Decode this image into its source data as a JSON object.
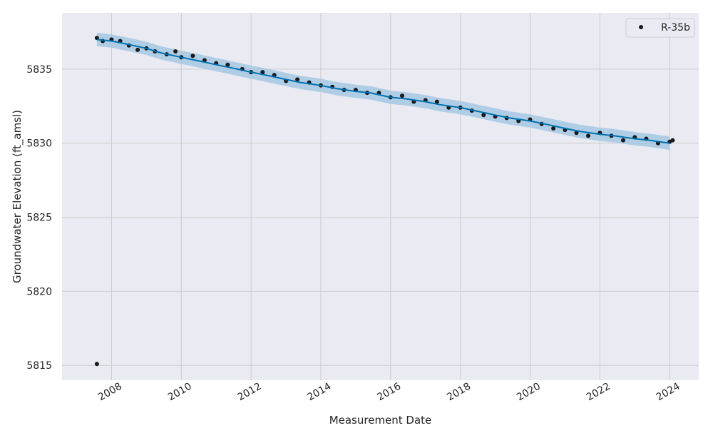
{
  "chart_data": {
    "type": "scatter",
    "title": "",
    "xlabel": "Measurement Date",
    "ylabel": "Groundwater Elevation (ft_amsl)",
    "xlim": [
      "2006-08-01",
      "2024-11-01"
    ],
    "ylim": [
      5814,
      5838.8
    ],
    "x_ticks": [
      "2008",
      "2010",
      "2012",
      "2014",
      "2016",
      "2018",
      "2020",
      "2022",
      "2024"
    ],
    "y_ticks": [
      5815,
      5820,
      5825,
      5830,
      5835
    ],
    "grid": true,
    "legend": {
      "placement": "top-right",
      "entries": [
        "R-35b"
      ]
    },
    "colors": {
      "plot_background": "#eaeaf2",
      "grid": "#cccccc",
      "observations": "#1a1a1a",
      "forecast_line": "#0072b2",
      "uncertainty_band": "#a6c8e4"
    },
    "series": [
      {
        "name": "R-35b",
        "kind": "observations",
        "points": [
          [
            "2007-08-01",
            5815.1
          ],
          [
            "2007-08-01",
            5837.1
          ],
          [
            "2007-10-01",
            5836.9
          ],
          [
            "2008-01-01",
            5837.0
          ],
          [
            "2008-04-01",
            5836.9
          ],
          [
            "2008-07-01",
            5836.6
          ],
          [
            "2008-10-01",
            5836.3
          ],
          [
            "2009-01-01",
            5836.4
          ],
          [
            "2009-04-01",
            5836.2
          ],
          [
            "2009-08-01",
            5836.0
          ],
          [
            "2009-11-01",
            5836.2
          ],
          [
            "2010-01-01",
            5835.8
          ],
          [
            "2010-05-01",
            5835.9
          ],
          [
            "2010-09-01",
            5835.6
          ],
          [
            "2011-01-01",
            5835.4
          ],
          [
            "2011-05-01",
            5835.3
          ],
          [
            "2011-10-01",
            5835.0
          ],
          [
            "2012-01-01",
            5834.8
          ],
          [
            "2012-05-01",
            5834.8
          ],
          [
            "2012-09-01",
            5834.6
          ],
          [
            "2013-01-01",
            5834.2
          ],
          [
            "2013-05-01",
            5834.3
          ],
          [
            "2013-09-01",
            5834.1
          ],
          [
            "2014-01-01",
            5833.9
          ],
          [
            "2014-05-01",
            5833.8
          ],
          [
            "2014-09-01",
            5833.6
          ],
          [
            "2015-01-01",
            5833.6
          ],
          [
            "2015-05-01",
            5833.4
          ],
          [
            "2015-09-01",
            5833.4
          ],
          [
            "2016-01-01",
            5833.1
          ],
          [
            "2016-05-01",
            5833.2
          ],
          [
            "2016-09-01",
            5832.8
          ],
          [
            "2017-01-01",
            5832.9
          ],
          [
            "2017-05-01",
            5832.8
          ],
          [
            "2017-09-01",
            5832.4
          ],
          [
            "2018-01-01",
            5832.4
          ],
          [
            "2018-05-01",
            5832.2
          ],
          [
            "2018-09-01",
            5831.9
          ],
          [
            "2019-01-01",
            5831.8
          ],
          [
            "2019-05-01",
            5831.7
          ],
          [
            "2019-09-01",
            5831.5
          ],
          [
            "2020-01-01",
            5831.6
          ],
          [
            "2020-05-01",
            5831.3
          ],
          [
            "2020-09-01",
            5831.0
          ],
          [
            "2021-01-01",
            5830.9
          ],
          [
            "2021-05-01",
            5830.7
          ],
          [
            "2021-09-01",
            5830.5
          ],
          [
            "2022-01-01",
            5830.7
          ],
          [
            "2022-05-01",
            5830.5
          ],
          [
            "2022-09-01",
            5830.2
          ],
          [
            "2023-01-01",
            5830.4
          ],
          [
            "2023-05-01",
            5830.3
          ],
          [
            "2023-09-01",
            5830.0
          ],
          [
            "2024-01-01",
            5830.1
          ],
          [
            "2024-02-01",
            5830.2
          ]
        ]
      },
      {
        "kind": "trend",
        "points": [
          [
            "2007-08-01",
            5837.0
          ],
          [
            "2008-01-01",
            5836.9
          ],
          [
            "2008-06-01",
            5836.7
          ],
          [
            "2009-01-01",
            5836.4
          ],
          [
            "2009-06-01",
            5836.1
          ],
          [
            "2010-01-01",
            5835.8
          ],
          [
            "2010-06-01",
            5835.6
          ],
          [
            "2011-01-01",
            5835.3
          ],
          [
            "2011-06-01",
            5835.1
          ],
          [
            "2012-01-01",
            5834.8
          ],
          [
            "2012-06-01",
            5834.6
          ],
          [
            "2013-01-01",
            5834.3
          ],
          [
            "2013-06-01",
            5834.1
          ],
          [
            "2014-01-01",
            5833.9
          ],
          [
            "2014-06-01",
            5833.7
          ],
          [
            "2015-01-01",
            5833.5
          ],
          [
            "2015-06-01",
            5833.4
          ],
          [
            "2016-01-01",
            5833.1
          ],
          [
            "2016-06-01",
            5833.0
          ],
          [
            "2017-01-01",
            5832.8
          ],
          [
            "2017-06-01",
            5832.6
          ],
          [
            "2018-01-01",
            5832.4
          ],
          [
            "2018-06-01",
            5832.2
          ],
          [
            "2019-01-01",
            5831.9
          ],
          [
            "2019-06-01",
            5831.7
          ],
          [
            "2020-01-01",
            5831.5
          ],
          [
            "2020-06-01",
            5831.3
          ],
          [
            "2021-01-01",
            5831.0
          ],
          [
            "2021-06-01",
            5830.8
          ],
          [
            "2022-01-01",
            5830.6
          ],
          [
            "2022-06-01",
            5830.5
          ],
          [
            "2023-01-01",
            5830.3
          ],
          [
            "2023-06-01",
            5830.2
          ],
          [
            "2024-01-01",
            5830.0
          ]
        ],
        "band_halfwidth": 0.45
      }
    ]
  }
}
